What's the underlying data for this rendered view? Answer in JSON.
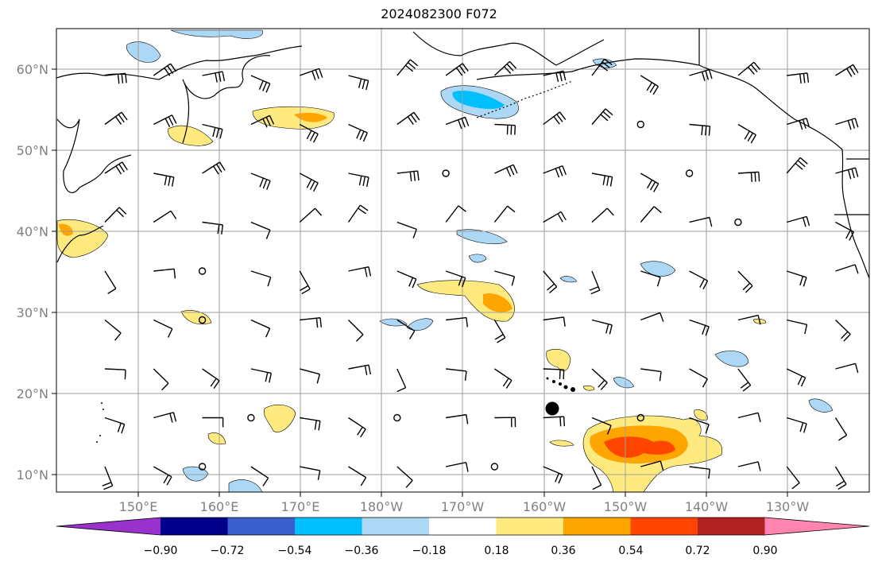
{
  "title": "2024082300 F072",
  "map": {
    "lat_labels": [
      "60°N",
      "50°N",
      "40°N",
      "30°N",
      "20°N",
      "10°N"
    ],
    "lon_labels": [
      "150°E",
      "160°E",
      "170°E",
      "180°W",
      "170°W",
      "160°W",
      "150°W",
      "140°W",
      "130°W"
    ],
    "gridlines": true,
    "contour_fill_levels": [
      -0.9,
      -0.72,
      -0.54,
      -0.36,
      -0.18,
      0.18,
      0.36,
      0.54,
      0.72,
      0.9
    ]
  },
  "colorbar": {
    "labels": [
      "−0.90",
      "−0.72",
      "−0.54",
      "−0.36",
      "−0.18",
      "0.18",
      "0.36",
      "0.54",
      "0.72",
      "0.90"
    ],
    "colors": [
      "#9932cc",
      "#00008b",
      "#3a5fcd",
      "#00bfff",
      "#add8f5",
      "#ffffff",
      "#ffea80",
      "#ffa500",
      "#ff4500",
      "#b22222",
      "#ff85b0"
    ],
    "extend": "both"
  }
}
